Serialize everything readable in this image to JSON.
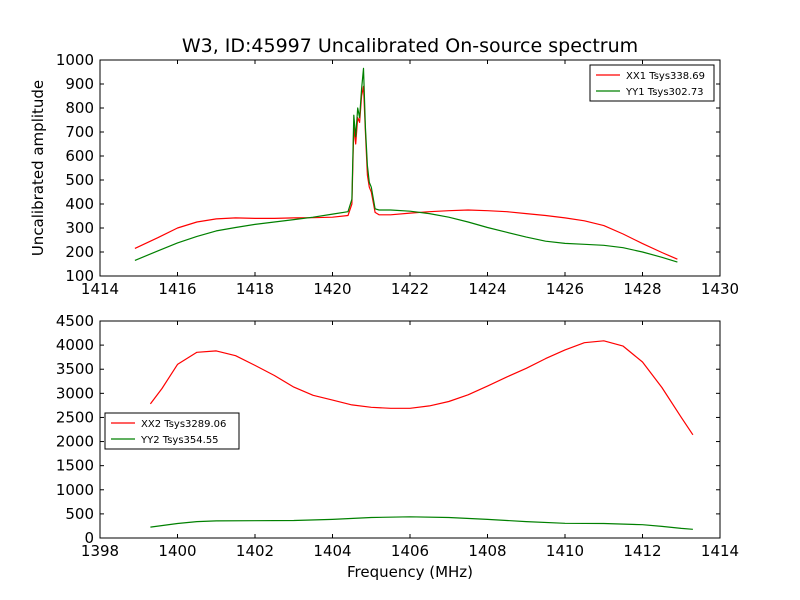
{
  "title": "W3, ID:45997 Uncalibrated On-source spectrum",
  "chart_data": [
    {
      "type": "line",
      "title": "W3, ID:45997 Uncalibrated On-source spectrum",
      "xlabel": "",
      "ylabel": "Uncalibrated amplitude",
      "xlim": [
        1414,
        1430
      ],
      "ylim": [
        100,
        1000
      ],
      "xticks": [
        "1414",
        "1416",
        "1418",
        "1420",
        "1422",
        "1424",
        "1426",
        "1428",
        "1430"
      ],
      "yticks": [
        "100",
        "200",
        "300",
        "400",
        "500",
        "600",
        "700",
        "800",
        "900",
        "1000"
      ],
      "legend": {
        "placement": "top-right"
      },
      "grid": false,
      "series": [
        {
          "name": "XX1 Tsys338.69",
          "color": "#ff0000",
          "points": [
            [
              1414.9,
              215
            ],
            [
              1415.5,
              260
            ],
            [
              1416.0,
              300
            ],
            [
              1416.5,
              325
            ],
            [
              1417.0,
              338
            ],
            [
              1417.5,
              342
            ],
            [
              1418.0,
              340
            ],
            [
              1418.5,
              340
            ],
            [
              1419.0,
              342
            ],
            [
              1419.5,
              343
            ],
            [
              1420.0,
              345
            ],
            [
              1420.4,
              352
            ],
            [
              1420.5,
              400
            ],
            [
              1420.55,
              720
            ],
            [
              1420.6,
              650
            ],
            [
              1420.65,
              760
            ],
            [
              1420.7,
              740
            ],
            [
              1420.75,
              850
            ],
            [
              1420.8,
              890
            ],
            [
              1420.85,
              700
            ],
            [
              1420.9,
              520
            ],
            [
              1420.95,
              470
            ],
            [
              1421.0,
              450
            ],
            [
              1421.1,
              365
            ],
            [
              1421.2,
              355
            ],
            [
              1421.5,
              355
            ],
            [
              1422.0,
              362
            ],
            [
              1422.5,
              368
            ],
            [
              1423.0,
              372
            ],
            [
              1423.5,
              375
            ],
            [
              1424.0,
              372
            ],
            [
              1424.5,
              368
            ],
            [
              1425.0,
              360
            ],
            [
              1425.5,
              352
            ],
            [
              1426.0,
              342
            ],
            [
              1426.5,
              330
            ],
            [
              1427.0,
              310
            ],
            [
              1427.5,
              275
            ],
            [
              1428.0,
              235
            ],
            [
              1428.5,
              198
            ],
            [
              1428.9,
              170
            ]
          ]
        },
        {
          "name": "YY1 Tsys302.73",
          "color": "#008000",
          "points": [
            [
              1414.9,
              165
            ],
            [
              1415.5,
              205
            ],
            [
              1416.0,
              238
            ],
            [
              1416.5,
              265
            ],
            [
              1417.0,
              288
            ],
            [
              1417.5,
              302
            ],
            [
              1418.0,
              315
            ],
            [
              1418.5,
              325
            ],
            [
              1419.0,
              335
            ],
            [
              1419.5,
              345
            ],
            [
              1420.0,
              358
            ],
            [
              1420.4,
              368
            ],
            [
              1420.5,
              420
            ],
            [
              1420.55,
              770
            ],
            [
              1420.6,
              680
            ],
            [
              1420.65,
              800
            ],
            [
              1420.7,
              760
            ],
            [
              1420.75,
              880
            ],
            [
              1420.8,
              965
            ],
            [
              1420.85,
              720
            ],
            [
              1420.9,
              560
            ],
            [
              1420.95,
              490
            ],
            [
              1421.0,
              470
            ],
            [
              1421.1,
              380
            ],
            [
              1421.2,
              375
            ],
            [
              1421.5,
              375
            ],
            [
              1422.0,
              370
            ],
            [
              1422.5,
              360
            ],
            [
              1423.0,
              345
            ],
            [
              1423.5,
              325
            ],
            [
              1424.0,
              302
            ],
            [
              1424.5,
              282
            ],
            [
              1425.0,
              262
            ],
            [
              1425.5,
              245
            ],
            [
              1426.0,
              236
            ],
            [
              1426.5,
              232
            ],
            [
              1427.0,
              228
            ],
            [
              1427.5,
              218
            ],
            [
              1428.0,
              200
            ],
            [
              1428.5,
              178
            ],
            [
              1428.9,
              158
            ]
          ]
        }
      ]
    },
    {
      "type": "line",
      "title": "",
      "xlabel": "Frequency (MHz)",
      "ylabel": "",
      "xlim": [
        1398,
        1414
      ],
      "ylim": [
        0,
        4500
      ],
      "xticks": [
        "1398",
        "1400",
        "1402",
        "1404",
        "1406",
        "1408",
        "1410",
        "1412",
        "1414"
      ],
      "yticks": [
        "0",
        "500",
        "1000",
        "1500",
        "2000",
        "2500",
        "3000",
        "3500",
        "4000",
        "4500"
      ],
      "legend": {
        "placement": "center-left"
      },
      "grid": false,
      "series": [
        {
          "name": "XX2 Tsys3289.06",
          "color": "#ff0000",
          "points": [
            [
              1399.3,
              2780
            ],
            [
              1399.6,
              3100
            ],
            [
              1400.0,
              3600
            ],
            [
              1400.5,
              3850
            ],
            [
              1401.0,
              3880
            ],
            [
              1401.5,
              3780
            ],
            [
              1402.0,
              3580
            ],
            [
              1402.5,
              3370
            ],
            [
              1403.0,
              3130
            ],
            [
              1403.5,
              2960
            ],
            [
              1404.0,
              2860
            ],
            [
              1404.5,
              2760
            ],
            [
              1405.0,
              2710
            ],
            [
              1405.5,
              2690
            ],
            [
              1406.0,
              2690
            ],
            [
              1406.5,
              2740
            ],
            [
              1407.0,
              2830
            ],
            [
              1407.5,
              2970
            ],
            [
              1408.0,
              3150
            ],
            [
              1408.5,
              3340
            ],
            [
              1409.0,
              3520
            ],
            [
              1409.5,
              3720
            ],
            [
              1410.0,
              3900
            ],
            [
              1410.5,
              4050
            ],
            [
              1411.0,
              4090
            ],
            [
              1411.5,
              3980
            ],
            [
              1412.0,
              3650
            ],
            [
              1412.5,
              3120
            ],
            [
              1413.0,
              2500
            ],
            [
              1413.3,
              2140
            ]
          ]
        },
        {
          "name": "YY2 Tsys354.55",
          "color": "#008000",
          "points": [
            [
              1399.3,
              225
            ],
            [
              1400.0,
              300
            ],
            [
              1400.5,
              340
            ],
            [
              1401.0,
              355
            ],
            [
              1402.0,
              358
            ],
            [
              1403.0,
              362
            ],
            [
              1404.0,
              385
            ],
            [
              1405.0,
              425
            ],
            [
              1406.0,
              440
            ],
            [
              1407.0,
              425
            ],
            [
              1408.0,
              385
            ],
            [
              1409.0,
              340
            ],
            [
              1410.0,
              305
            ],
            [
              1411.0,
              300
            ],
            [
              1412.0,
              275
            ],
            [
              1412.5,
              240
            ],
            [
              1413.0,
              200
            ],
            [
              1413.3,
              180
            ]
          ]
        }
      ]
    }
  ]
}
